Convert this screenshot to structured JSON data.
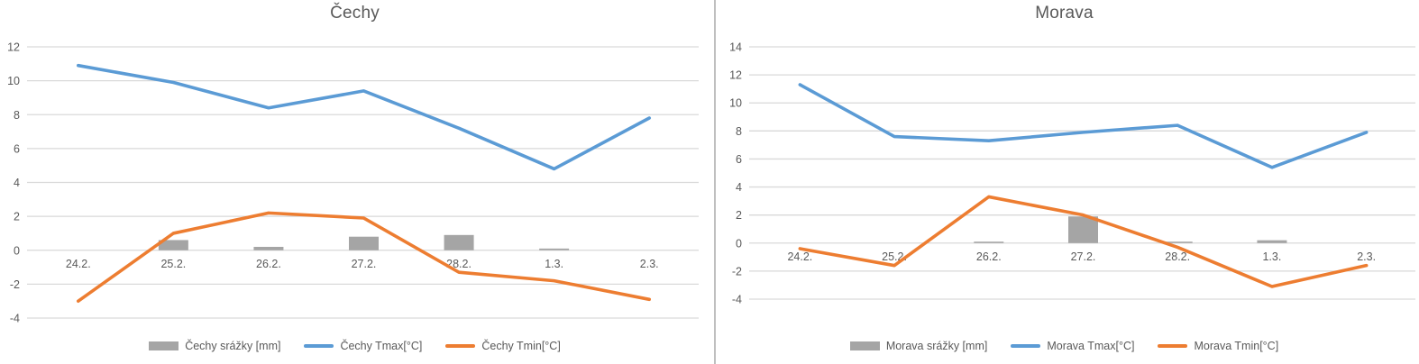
{
  "style": {
    "background": "#ffffff",
    "gridline_color": "#d9d9d9",
    "axis_label_color": "#595959",
    "title_color": "#595959",
    "legend_text_color": "#595959",
    "divider_color": "#bfbfbf",
    "bar_color": "#a5a5a5",
    "tmax_color": "#5b9bd5",
    "tmin_color": "#ed7d31"
  },
  "chart_data": [
    {
      "type": "combo-bar-line",
      "title": "Čechy",
      "categories": [
        "24.2.",
        "25.2.",
        "26.2.",
        "27.2.",
        "28.2.",
        "1.3.",
        "2.3."
      ],
      "yticks": [
        12,
        10,
        8,
        6,
        4,
        2,
        0,
        -2,
        -4
      ],
      "ylim": [
        -4,
        12
      ],
      "grid": true,
      "legend_position": "bottom",
      "series": [
        {
          "name": "Čechy srážky [mm]",
          "type": "bar",
          "role": "precipitation",
          "color": "#a5a5a5",
          "values": [
            0,
            0.6,
            0.2,
            0.8,
            0.9,
            0.1,
            0
          ]
        },
        {
          "name": "Čechy Tmax[°C]",
          "type": "line",
          "role": "tmax",
          "color": "#5b9bd5",
          "values": [
            10.9,
            9.9,
            8.4,
            9.4,
            7.2,
            4.8,
            7.8
          ]
        },
        {
          "name": "Čechy Tmin[°C]",
          "type": "line",
          "role": "tmin",
          "color": "#ed7d31",
          "values": [
            -3.0,
            1.0,
            2.2,
            1.9,
            -1.3,
            -1.8,
            -2.9
          ]
        }
      ]
    },
    {
      "type": "combo-bar-line",
      "title": "Morava",
      "categories": [
        "24.2.",
        "25.2.",
        "26.2.",
        "27.2.",
        "28.2.",
        "1.3.",
        "2.3."
      ],
      "yticks": [
        14,
        12,
        10,
        8,
        6,
        4,
        2,
        0,
        -2,
        -4
      ],
      "ylim": [
        -4,
        14
      ],
      "grid": true,
      "legend_position": "bottom",
      "series": [
        {
          "name": "Morava srážky [mm]",
          "type": "bar",
          "role": "precipitation",
          "color": "#a5a5a5",
          "values": [
            0,
            0,
            0.1,
            1.9,
            0.1,
            0.2,
            0
          ]
        },
        {
          "name": "Morava Tmax[°C]",
          "type": "line",
          "role": "tmax",
          "color": "#5b9bd5",
          "values": [
            11.3,
            7.6,
            7.3,
            7.9,
            8.4,
            5.4,
            7.9
          ]
        },
        {
          "name": "Morava Tmin[°C]",
          "type": "line",
          "role": "tmin",
          "color": "#ed7d31",
          "values": [
            -0.4,
            -1.6,
            3.3,
            2.0,
            -0.3,
            -3.1,
            -1.6
          ]
        }
      ]
    }
  ]
}
